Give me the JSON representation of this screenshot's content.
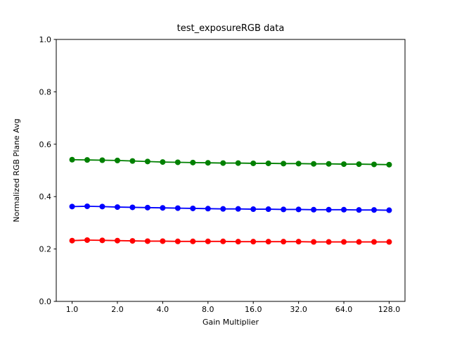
{
  "window": {
    "background": "#ffffff"
  },
  "chart_data": {
    "type": "line",
    "title": "test_exposureRGB data",
    "xlabel": "Gain Multiplier",
    "ylabel": "Normalized RGB Plane Avg",
    "x_scale": "log2",
    "ylim": [
      0.0,
      1.0
    ],
    "xlim_log2": [
      -0.35,
      7.35
    ],
    "grid": false,
    "legend": "none",
    "x_ticks": [
      1.0,
      2.0,
      4.0,
      8.0,
      16.0,
      32.0,
      64.0,
      128.0
    ],
    "x_tick_labels": [
      "1.0",
      "2.0",
      "4.0",
      "8.0",
      "16.0",
      "32.0",
      "64.0",
      "128.0"
    ],
    "y_ticks": [
      0.0,
      0.2,
      0.4,
      0.6,
      0.8,
      1.0
    ],
    "y_tick_labels": [
      "0.0",
      "0.2",
      "0.4",
      "0.6",
      "0.8",
      "1.0"
    ],
    "x": [
      1.0,
      1.26,
      1.587,
      2.0,
      2.52,
      3.175,
      4.0,
      5.04,
      6.35,
      8.0,
      10.08,
      12.7,
      16.0,
      20.16,
      25.4,
      32.0,
      40.32,
      50.8,
      64.0,
      80.63,
      101.6,
      128.0
    ],
    "series": [
      {
        "name": "red-plane",
        "color": "#ff0000",
        "marker": "circle",
        "values": [
          0.232,
          0.234,
          0.233,
          0.232,
          0.231,
          0.23,
          0.23,
          0.229,
          0.229,
          0.229,
          0.229,
          0.228,
          0.228,
          0.228,
          0.228,
          0.228,
          0.227,
          0.227,
          0.227,
          0.227,
          0.227,
          0.227
        ]
      },
      {
        "name": "green-plane",
        "color": "#008000",
        "marker": "circle",
        "values": [
          0.541,
          0.54,
          0.539,
          0.538,
          0.536,
          0.534,
          0.532,
          0.531,
          0.53,
          0.529,
          0.528,
          0.528,
          0.527,
          0.527,
          0.526,
          0.526,
          0.525,
          0.525,
          0.524,
          0.524,
          0.523,
          0.522
        ]
      },
      {
        "name": "blue-plane",
        "color": "#0000ff",
        "marker": "circle",
        "values": [
          0.362,
          0.363,
          0.362,
          0.36,
          0.359,
          0.358,
          0.357,
          0.356,
          0.355,
          0.354,
          0.353,
          0.353,
          0.352,
          0.352,
          0.351,
          0.351,
          0.35,
          0.35,
          0.35,
          0.349,
          0.349,
          0.348
        ]
      }
    ]
  }
}
